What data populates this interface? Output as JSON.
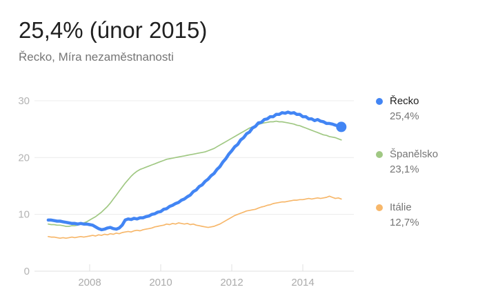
{
  "header": {
    "title": "25,4% (únor 2015)",
    "subtitle": "Řecko, Míra nezaměstnanosti"
  },
  "legend": {
    "items": [
      {
        "name": "Řecko",
        "value": "25,4%",
        "color": "#4285f4",
        "selected": true
      },
      {
        "name": "Španělsko",
        "value": "23,1%",
        "color": "#a0c883",
        "selected": false
      },
      {
        "name": "Itálie",
        "value": "12,7%",
        "color": "#f7b76a",
        "selected": false
      }
    ]
  },
  "chart_data": {
    "type": "line",
    "title": "Míra nezaměstnanosti",
    "unit": "%",
    "freq": "monthly",
    "x_start": "2006-11",
    "x_end": "2015-02",
    "ylim": [
      0,
      30
    ],
    "yticks": [
      0,
      10,
      20,
      30
    ],
    "xticks": [
      2008,
      2010,
      2012,
      2014
    ],
    "grid": true,
    "legend_position": "right",
    "series": [
      {
        "name": "Řecko",
        "color": "#4285f4",
        "emphasized": true,
        "end_dot": true,
        "values": [
          9.0,
          9.0,
          8.9,
          8.8,
          8.8,
          8.7,
          8.6,
          8.5,
          8.4,
          8.4,
          8.3,
          8.4,
          8.3,
          8.3,
          8.2,
          8.1,
          7.8,
          7.5,
          7.3,
          7.4,
          7.6,
          7.7,
          7.5,
          7.4,
          7.6,
          8.1,
          9.0,
          9.2,
          9.1,
          9.3,
          9.2,
          9.4,
          9.4,
          9.6,
          9.7,
          10.0,
          10.1,
          10.4,
          10.5,
          10.9,
          11.0,
          11.4,
          11.6,
          11.9,
          12.1,
          12.5,
          12.7,
          13.1,
          13.4,
          14.0,
          14.3,
          14.9,
          15.2,
          15.8,
          16.2,
          16.8,
          17.2,
          17.9,
          18.4,
          19.2,
          19.8,
          20.6,
          21.2,
          21.9,
          22.3,
          23.1,
          23.5,
          24.2,
          24.5,
          25.2,
          25.5,
          26.1,
          26.2,
          26.7,
          26.8,
          27.2,
          27.2,
          27.6,
          27.6,
          27.9,
          27.8,
          28.0,
          27.8,
          27.9,
          27.6,
          27.6,
          27.2,
          27.2,
          26.8,
          26.8,
          26.5,
          26.7,
          26.4,
          26.3,
          26.0,
          26.0,
          25.9,
          25.7,
          25.6,
          25.4
        ]
      },
      {
        "name": "Španělsko",
        "color": "#a0c883",
        "emphasized": false,
        "end_dot": false,
        "values": [
          8.3,
          8.2,
          8.2,
          8.1,
          8.1,
          8.0,
          7.9,
          7.9,
          8.0,
          8.0,
          8.1,
          8.3,
          8.5,
          8.7,
          9.0,
          9.3,
          9.6,
          10.0,
          10.4,
          10.9,
          11.4,
          12.0,
          12.7,
          13.4,
          14.1,
          14.8,
          15.5,
          16.1,
          16.7,
          17.2,
          17.6,
          17.9,
          18.1,
          18.3,
          18.5,
          18.7,
          18.9,
          19.1,
          19.3,
          19.5,
          19.7,
          19.8,
          19.9,
          20.0,
          20.1,
          20.2,
          20.3,
          20.4,
          20.5,
          20.6,
          20.7,
          20.8,
          20.9,
          21.0,
          21.2,
          21.4,
          21.6,
          21.9,
          22.2,
          22.5,
          22.8,
          23.1,
          23.4,
          23.7,
          24.0,
          24.3,
          24.6,
          24.9,
          25.2,
          25.4,
          25.6,
          25.8,
          26.0,
          26.1,
          26.2,
          26.3,
          26.3,
          26.4,
          26.3,
          26.3,
          26.2,
          26.1,
          26.0,
          25.9,
          25.7,
          25.6,
          25.4,
          25.2,
          25.0,
          24.8,
          24.6,
          24.4,
          24.2,
          24.0,
          23.9,
          23.7,
          23.6,
          23.5,
          23.3,
          23.1
        ]
      },
      {
        "name": "Itálie",
        "color": "#f7b76a",
        "emphasized": false,
        "end_dot": false,
        "values": [
          6.1,
          6.0,
          6.0,
          5.9,
          5.8,
          5.9,
          5.8,
          5.9,
          6.0,
          5.9,
          6.0,
          6.1,
          6.0,
          6.1,
          6.2,
          6.3,
          6.2,
          6.4,
          6.3,
          6.5,
          6.4,
          6.6,
          6.5,
          6.7,
          6.6,
          6.8,
          6.9,
          7.0,
          6.9,
          7.1,
          7.2,
          7.1,
          7.3,
          7.4,
          7.5,
          7.6,
          7.8,
          7.9,
          8.0,
          8.1,
          8.3,
          8.2,
          8.4,
          8.3,
          8.5,
          8.4,
          8.3,
          8.4,
          8.2,
          8.3,
          8.1,
          8.0,
          7.9,
          7.8,
          7.7,
          7.8,
          7.9,
          8.1,
          8.3,
          8.6,
          8.9,
          9.2,
          9.5,
          9.8,
          10.0,
          10.2,
          10.4,
          10.6,
          10.7,
          10.8,
          10.9,
          11.1,
          11.3,
          11.4,
          11.6,
          11.7,
          11.9,
          12.0,
          12.1,
          12.2,
          12.2,
          12.3,
          12.4,
          12.5,
          12.5,
          12.6,
          12.6,
          12.7,
          12.8,
          12.7,
          12.8,
          12.9,
          12.8,
          12.9,
          13.0,
          13.2,
          13.0,
          12.8,
          12.9,
          12.7
        ]
      }
    ]
  }
}
